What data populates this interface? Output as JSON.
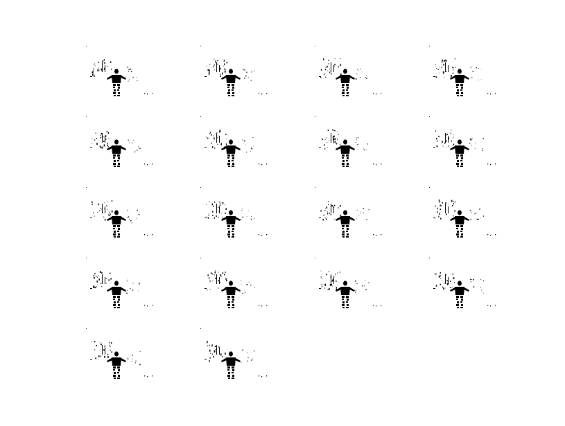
{
  "figure": {
    "background_color": "#ffffff",
    "foreground_color": "#000000",
    "frame_count": 18,
    "columns": 4,
    "rows": 5,
    "frames": [
      {
        "index": 1,
        "pose": "arms-out"
      },
      {
        "index": 2,
        "pose": "arms-out"
      },
      {
        "index": 3,
        "pose": "arms-out"
      },
      {
        "index": 4,
        "pose": "arms-out"
      },
      {
        "index": 5,
        "pose": "arms-out"
      },
      {
        "index": 6,
        "pose": "arms-out"
      },
      {
        "index": 7,
        "pose": "arms-out"
      },
      {
        "index": 8,
        "pose": "arms-out"
      },
      {
        "index": 9,
        "pose": "arms-out"
      },
      {
        "index": 10,
        "pose": "arms-out"
      },
      {
        "index": 11,
        "pose": "arms-out"
      },
      {
        "index": 12,
        "pose": "arms-out"
      },
      {
        "index": 13,
        "pose": "arms-out"
      },
      {
        "index": 14,
        "pose": "arms-out"
      },
      {
        "index": 15,
        "pose": "arms-out"
      },
      {
        "index": 16,
        "pose": "arms-out"
      },
      {
        "index": 17,
        "pose": "arms-out"
      },
      {
        "index": 18,
        "pose": "arms-out"
      }
    ]
  }
}
